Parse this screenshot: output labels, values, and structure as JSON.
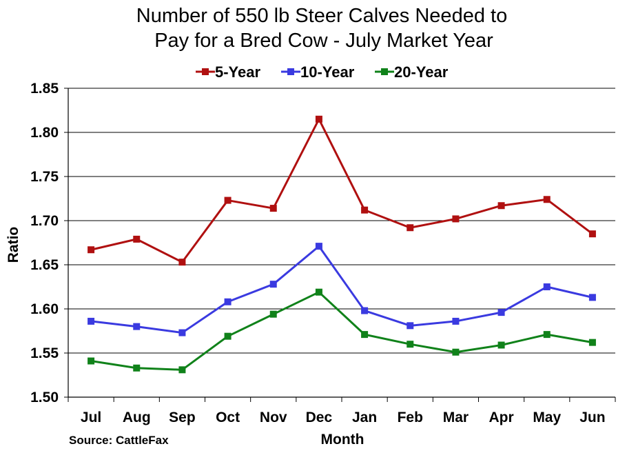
{
  "chart_data": {
    "type": "line",
    "title_lines": [
      "Number of 550 lb Steer Calves Needed to",
      "Pay for a Bred Cow - July Market Year"
    ],
    "xlabel": "Month",
    "ylabel": "Ratio",
    "source": "Source: CattleFax",
    "categories": [
      "Jul",
      "Aug",
      "Sep",
      "Oct",
      "Nov",
      "Dec",
      "Jan",
      "Feb",
      "Mar",
      "Apr",
      "May",
      "Jun"
    ],
    "ylim": [
      1.5,
      1.85
    ],
    "yticks": [
      "1.50",
      "1.55",
      "1.60",
      "1.65",
      "1.70",
      "1.75",
      "1.80",
      "1.85"
    ],
    "grid": true,
    "legend": "top",
    "series": [
      {
        "name": "5-Year",
        "color": "#B01010",
        "values": [
          1.667,
          1.679,
          1.653,
          1.723,
          1.714,
          1.815,
          1.712,
          1.692,
          1.702,
          1.717,
          1.724,
          1.685
        ]
      },
      {
        "name": "10-Year",
        "color": "#3A3AE0",
        "values": [
          1.586,
          1.58,
          1.573,
          1.608,
          1.628,
          1.671,
          1.598,
          1.581,
          1.586,
          1.596,
          1.625,
          1.613
        ]
      },
      {
        "name": "20-Year",
        "color": "#10821A",
        "values": [
          1.541,
          1.533,
          1.531,
          1.569,
          1.594,
          1.619,
          1.571,
          1.56,
          1.551,
          1.559,
          1.571,
          1.562
        ]
      }
    ]
  }
}
